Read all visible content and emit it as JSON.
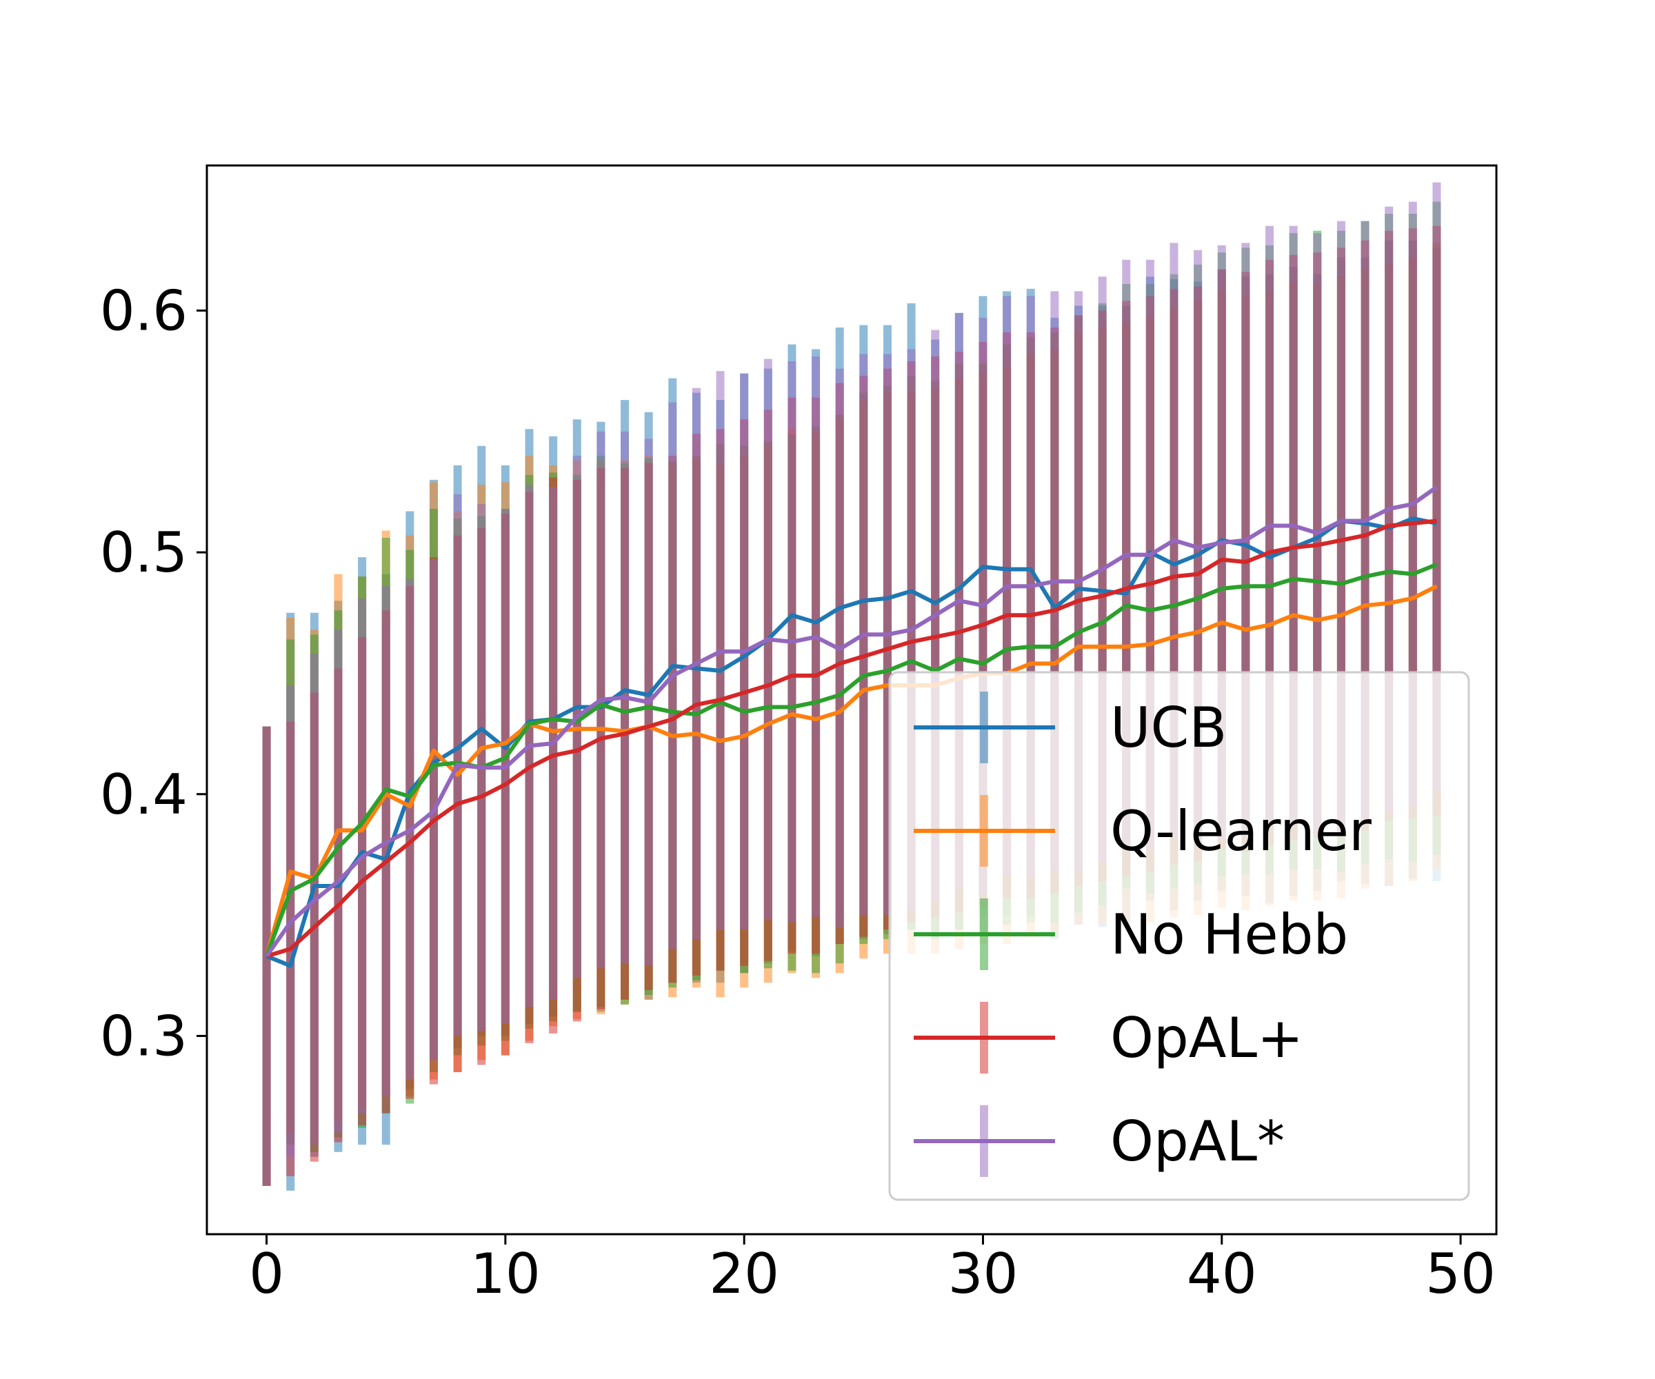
{
  "chart_data": {
    "type": "line",
    "title": "",
    "xlabel": "",
    "ylabel": "",
    "xlim": [
      -2.5,
      51.5
    ],
    "ylim": [
      0.218,
      0.66
    ],
    "xticks": [
      0,
      10,
      20,
      30,
      40,
      50
    ],
    "yticks": [
      0.3,
      0.4,
      0.5,
      0.6
    ],
    "xtick_labels": [
      "0",
      "10",
      "20",
      "30",
      "40",
      "50"
    ],
    "ytick_labels": [
      "0.3",
      "0.4",
      "0.5",
      "0.6"
    ],
    "legend_position": "lower-right",
    "grid": false,
    "x": [
      0,
      1,
      2,
      3,
      4,
      5,
      6,
      7,
      8,
      9,
      10,
      11,
      12,
      13,
      14,
      15,
      16,
      17,
      18,
      19,
      20,
      21,
      22,
      23,
      24,
      25,
      26,
      27,
      28,
      29,
      30,
      31,
      32,
      33,
      34,
      35,
      36,
      37,
      38,
      39,
      40,
      41,
      42,
      43,
      44,
      45,
      46,
      47,
      48,
      49
    ],
    "series": [
      {
        "name": "UCB",
        "color": "#1f77b4",
        "values": [
          0.333,
          0.329,
          0.362,
          0.362,
          0.376,
          0.373,
          0.401,
          0.413,
          0.419,
          0.427,
          0.419,
          0.43,
          0.431,
          0.436,
          0.436,
          0.443,
          0.441,
          0.453,
          0.452,
          0.451,
          0.457,
          0.464,
          0.474,
          0.471,
          0.477,
          0.48,
          0.481,
          0.484,
          0.479,
          0.485,
          0.494,
          0.493,
          0.493,
          0.477,
          0.485,
          0.484,
          0.483,
          0.5,
          0.495,
          0.499,
          0.505,
          0.503,
          0.498,
          0.502,
          0.506,
          0.513,
          0.512,
          0.51,
          0.514,
          0.512
        ],
        "err_low": [
          0.238,
          0.236,
          0.25,
          0.252,
          0.255,
          0.255,
          0.278,
          0.29,
          0.295,
          0.3,
          0.3,
          0.305,
          0.308,
          0.31,
          0.31,
          0.315,
          0.315,
          0.322,
          0.322,
          0.322,
          0.326,
          0.33,
          0.335,
          0.333,
          0.338,
          0.34,
          0.342,
          0.344,
          0.34,
          0.344,
          0.35,
          0.35,
          0.35,
          0.34,
          0.346,
          0.345,
          0.345,
          0.356,
          0.352,
          0.356,
          0.36,
          0.358,
          0.355,
          0.358,
          0.36,
          0.364,
          0.363,
          0.362,
          0.365,
          0.364
        ],
        "err_high": [
          0.428,
          0.475,
          0.475,
          0.48,
          0.498,
          0.491,
          0.517,
          0.53,
          0.536,
          0.544,
          0.536,
          0.551,
          0.548,
          0.555,
          0.554,
          0.563,
          0.558,
          0.572,
          0.566,
          0.563,
          0.574,
          0.576,
          0.586,
          0.584,
          0.593,
          0.594,
          0.594,
          0.603,
          0.588,
          0.599,
          0.606,
          0.608,
          0.609,
          0.597,
          0.602,
          0.602,
          0.602,
          0.614,
          0.613,
          0.612,
          0.617,
          0.614,
          0.615,
          0.618,
          0.615,
          0.622,
          0.622,
          0.629,
          0.629,
          0.626
        ]
      },
      {
        "name": "Q-learner",
        "color": "#ff7f0e",
        "values": [
          0.333,
          0.368,
          0.365,
          0.385,
          0.385,
          0.4,
          0.395,
          0.418,
          0.408,
          0.419,
          0.421,
          0.429,
          0.426,
          0.427,
          0.427,
          0.426,
          0.428,
          0.424,
          0.425,
          0.422,
          0.424,
          0.429,
          0.433,
          0.431,
          0.434,
          0.443,
          0.445,
          0.445,
          0.445,
          0.448,
          0.45,
          0.45,
          0.454,
          0.454,
          0.461,
          0.461,
          0.461,
          0.462,
          0.465,
          0.467,
          0.471,
          0.468,
          0.47,
          0.474,
          0.472,
          0.474,
          0.478,
          0.479,
          0.481,
          0.486
        ],
        "err_low": [
          0.238,
          0.26,
          0.255,
          0.265,
          0.27,
          0.275,
          0.275,
          0.282,
          0.285,
          0.29,
          0.292,
          0.298,
          0.304,
          0.307,
          0.309,
          0.313,
          0.315,
          0.316,
          0.32,
          0.316,
          0.32,
          0.322,
          0.326,
          0.324,
          0.326,
          0.332,
          0.334,
          0.334,
          0.334,
          0.336,
          0.338,
          0.338,
          0.341,
          0.341,
          0.346,
          0.346,
          0.346,
          0.347,
          0.349,
          0.35,
          0.353,
          0.352,
          0.354,
          0.356,
          0.356,
          0.357,
          0.361,
          0.362,
          0.364,
          0.369
        ],
        "err_high": [
          0.428,
          0.473,
          0.468,
          0.491,
          0.49,
          0.509,
          0.507,
          0.529,
          0.517,
          0.528,
          0.529,
          0.54,
          0.536,
          0.538,
          0.538,
          0.538,
          0.54,
          0.537,
          0.539,
          0.537,
          0.54,
          0.545,
          0.551,
          0.55,
          0.556,
          0.563,
          0.566,
          0.567,
          0.568,
          0.572,
          0.575,
          0.577,
          0.582,
          0.584,
          0.591,
          0.593,
          0.595,
          0.597,
          0.601,
          0.604,
          0.608,
          0.606,
          0.608,
          0.612,
          0.611,
          0.614,
          0.617,
          0.619,
          0.622,
          0.628
        ]
      },
      {
        "name": "No Hebb",
        "color": "#2ca02c",
        "values": [
          0.333,
          0.36,
          0.365,
          0.378,
          0.388,
          0.402,
          0.399,
          0.412,
          0.413,
          0.411,
          0.415,
          0.429,
          0.431,
          0.43,
          0.437,
          0.434,
          0.436,
          0.434,
          0.433,
          0.438,
          0.434,
          0.436,
          0.436,
          0.438,
          0.441,
          0.449,
          0.451,
          0.455,
          0.451,
          0.456,
          0.454,
          0.46,
          0.461,
          0.461,
          0.467,
          0.471,
          0.478,
          0.476,
          0.478,
          0.481,
          0.485,
          0.486,
          0.486,
          0.489,
          0.488,
          0.487,
          0.49,
          0.492,
          0.491,
          0.495
        ],
        "err_low": [
          0.238,
          0.255,
          0.252,
          0.258,
          0.262,
          0.268,
          0.272,
          0.285,
          0.292,
          0.296,
          0.298,
          0.303,
          0.306,
          0.31,
          0.312,
          0.313,
          0.317,
          0.32,
          0.323,
          0.327,
          0.326,
          0.328,
          0.327,
          0.326,
          0.33,
          0.338,
          0.34,
          0.344,
          0.34,
          0.344,
          0.342,
          0.346,
          0.347,
          0.347,
          0.351,
          0.354,
          0.361,
          0.359,
          0.361,
          0.363,
          0.366,
          0.367,
          0.367,
          0.369,
          0.369,
          0.368,
          0.371,
          0.373,
          0.372,
          0.375
        ],
        "err_high": [
          0.428,
          0.464,
          0.466,
          0.476,
          0.49,
          0.506,
          0.501,
          0.518,
          0.514,
          0.515,
          0.518,
          0.532,
          0.533,
          0.532,
          0.54,
          0.537,
          0.539,
          0.538,
          0.54,
          0.545,
          0.544,
          0.546,
          0.549,
          0.552,
          0.557,
          0.566,
          0.569,
          0.573,
          0.571,
          0.578,
          0.578,
          0.586,
          0.589,
          0.591,
          0.598,
          0.603,
          0.611,
          0.611,
          0.615,
          0.619,
          0.624,
          0.626,
          0.627,
          0.632,
          0.633,
          0.633,
          0.637,
          0.64,
          0.64,
          0.645
        ]
      },
      {
        "name": "OpAL+",
        "color": "#d62728",
        "values": [
          0.333,
          0.336,
          0.345,
          0.354,
          0.364,
          0.372,
          0.38,
          0.389,
          0.396,
          0.399,
          0.404,
          0.411,
          0.416,
          0.418,
          0.423,
          0.425,
          0.428,
          0.431,
          0.437,
          0.439,
          0.442,
          0.445,
          0.449,
          0.449,
          0.454,
          0.457,
          0.46,
          0.463,
          0.465,
          0.467,
          0.47,
          0.474,
          0.474,
          0.476,
          0.48,
          0.482,
          0.485,
          0.487,
          0.49,
          0.491,
          0.497,
          0.496,
          0.5,
          0.502,
          0.503,
          0.505,
          0.507,
          0.511,
          0.512,
          0.513
        ],
        "err_low": [
          0.238,
          0.242,
          0.248,
          0.256,
          0.263,
          0.268,
          0.274,
          0.28,
          0.285,
          0.288,
          0.292,
          0.297,
          0.301,
          0.306,
          0.311,
          0.315,
          0.319,
          0.322,
          0.325,
          0.327,
          0.329,
          0.331,
          0.334,
          0.334,
          0.338,
          0.341,
          0.344,
          0.347,
          0.349,
          0.351,
          0.353,
          0.357,
          0.357,
          0.359,
          0.362,
          0.364,
          0.366,
          0.368,
          0.371,
          0.372,
          0.377,
          0.376,
          0.379,
          0.381,
          0.382,
          0.384,
          0.385,
          0.389,
          0.39,
          0.391
        ],
        "err_high": [
          0.428,
          0.43,
          0.442,
          0.452,
          0.465,
          0.476,
          0.486,
          0.498,
          0.507,
          0.51,
          0.516,
          0.525,
          0.531,
          0.53,
          0.535,
          0.535,
          0.537,
          0.54,
          0.549,
          0.551,
          0.555,
          0.559,
          0.564,
          0.564,
          0.57,
          0.573,
          0.576,
          0.579,
          0.581,
          0.583,
          0.587,
          0.591,
          0.591,
          0.593,
          0.598,
          0.6,
          0.604,
          0.606,
          0.609,
          0.61,
          0.617,
          0.616,
          0.621,
          0.623,
          0.624,
          0.626,
          0.629,
          0.633,
          0.634,
          0.635
        ]
      },
      {
        "name": "OpAL*",
        "color": "#9467bd",
        "values": [
          0.333,
          0.347,
          0.356,
          0.364,
          0.374,
          0.38,
          0.385,
          0.393,
          0.412,
          0.411,
          0.411,
          0.42,
          0.421,
          0.432,
          0.439,
          0.44,
          0.438,
          0.449,
          0.454,
          0.459,
          0.459,
          0.464,
          0.463,
          0.465,
          0.46,
          0.466,
          0.466,
          0.468,
          0.474,
          0.48,
          0.478,
          0.486,
          0.486,
          0.488,
          0.488,
          0.493,
          0.499,
          0.499,
          0.505,
          0.502,
          0.504,
          0.505,
          0.511,
          0.511,
          0.508,
          0.513,
          0.513,
          0.518,
          0.52,
          0.527
        ],
        "err_low": [
          0.238,
          0.25,
          0.255,
          0.26,
          0.268,
          0.275,
          0.282,
          0.29,
          0.3,
          0.302,
          0.305,
          0.312,
          0.315,
          0.324,
          0.328,
          0.33,
          0.329,
          0.336,
          0.34,
          0.344,
          0.344,
          0.348,
          0.347,
          0.349,
          0.345,
          0.35,
          0.35,
          0.352,
          0.356,
          0.361,
          0.359,
          0.366,
          0.366,
          0.368,
          0.368,
          0.372,
          0.377,
          0.377,
          0.382,
          0.379,
          0.381,
          0.382,
          0.387,
          0.387,
          0.384,
          0.389,
          0.389,
          0.393,
          0.395,
          0.401
        ],
        "err_high": [
          0.428,
          0.445,
          0.458,
          0.468,
          0.481,
          0.486,
          0.489,
          0.497,
          0.524,
          0.52,
          0.518,
          0.528,
          0.527,
          0.54,
          0.55,
          0.55,
          0.547,
          0.562,
          0.568,
          0.575,
          0.574,
          0.58,
          0.579,
          0.581,
          0.576,
          0.582,
          0.582,
          0.584,
          0.592,
          0.599,
          0.597,
          0.606,
          0.606,
          0.608,
          0.608,
          0.614,
          0.621,
          0.621,
          0.628,
          0.625,
          0.627,
          0.628,
          0.635,
          0.635,
          0.632,
          0.637,
          0.637,
          0.643,
          0.645,
          0.653
        ]
      }
    ]
  }
}
